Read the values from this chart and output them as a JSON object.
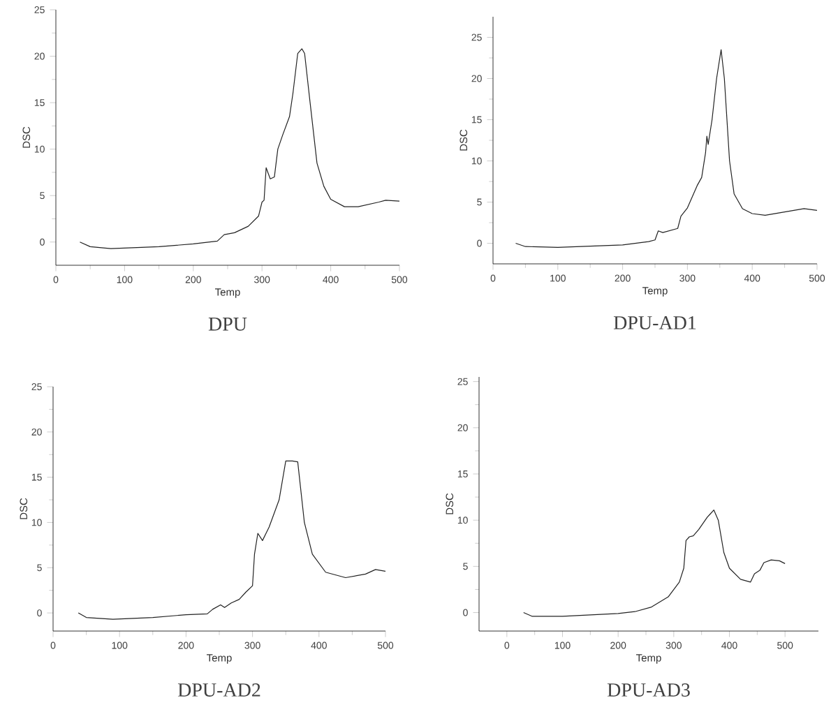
{
  "chart_data": [
    {
      "type": "line",
      "title": "DPU",
      "xlabel": "Temp",
      "ylabel": "DSC",
      "color": "#222222",
      "xlim": [
        0,
        500
      ],
      "ylim": [
        -2.5,
        25
      ],
      "xticks": [
        0,
        100,
        200,
        300,
        400,
        500
      ],
      "yticks": [
        0,
        5,
        10,
        15,
        20,
        25
      ],
      "x": [
        35,
        50,
        80,
        150,
        200,
        235,
        245,
        260,
        280,
        295,
        300,
        303,
        306,
        312,
        318,
        323,
        330,
        340,
        345,
        352,
        358,
        362,
        370,
        380,
        390,
        400,
        420,
        440,
        470,
        480,
        500
      ],
      "values": [
        0,
        -0.5,
        -0.7,
        -0.5,
        -0.2,
        0.1,
        0.8,
        1,
        1.7,
        2.8,
        4.3,
        4.5,
        8,
        6.8,
        7,
        10,
        11.5,
        13.5,
        16,
        20.3,
        20.8,
        20.3,
        15,
        8.5,
        6,
        4.6,
        3.8,
        3.8,
        4.3,
        4.5,
        4.4
      ]
    },
    {
      "type": "line",
      "title": "DPU-AD1",
      "xlabel": "Temp",
      "ylabel": "DSC",
      "color": "#222222",
      "xlim": [
        0,
        500
      ],
      "ylim": [
        -2.5,
        27.5
      ],
      "xticks": [
        0,
        100,
        200,
        300,
        400,
        500
      ],
      "yticks": [
        0,
        5,
        10,
        15,
        20,
        25
      ],
      "x": [
        35,
        50,
        100,
        200,
        240,
        250,
        255,
        262,
        285,
        290,
        300,
        315,
        322,
        328,
        330,
        332,
        338,
        345,
        352,
        357,
        365,
        372,
        385,
        400,
        420,
        450,
        480,
        500
      ],
      "values": [
        0,
        -0.4,
        -0.5,
        -0.2,
        0.2,
        0.4,
        1.5,
        1.3,
        1.8,
        3.3,
        4.3,
        7,
        8,
        11,
        13,
        12,
        15,
        20,
        23.5,
        20,
        10,
        6,
        4.2,
        3.6,
        3.4,
        3.8,
        4.2,
        4
      ]
    },
    {
      "type": "line",
      "title": "DPU-AD2",
      "xlabel": "Temp",
      "ylabel": "DSC",
      "color": "#222222",
      "xlim": [
        0,
        500
      ],
      "ylim": [
        -2,
        25
      ],
      "xticks": [
        0,
        100,
        200,
        300,
        400,
        500
      ],
      "yticks": [
        0,
        5,
        10,
        15,
        20,
        25
      ],
      "x": [
        38,
        50,
        90,
        150,
        200,
        232,
        240,
        252,
        258,
        268,
        280,
        290,
        300,
        303,
        308,
        315,
        325,
        340,
        350,
        360,
        368,
        378,
        390,
        410,
        440,
        470,
        485,
        500
      ],
      "values": [
        0,
        -0.5,
        -0.7,
        -0.5,
        -0.2,
        -0.1,
        0.4,
        0.9,
        0.6,
        1.1,
        1.5,
        2.3,
        3,
        6.5,
        8.8,
        8,
        9.5,
        12.5,
        16.8,
        16.8,
        16.7,
        10,
        6.5,
        4.5,
        3.9,
        4.3,
        4.8,
        4.6
      ]
    },
    {
      "type": "line",
      "title": "DPU-AD3",
      "xlabel": "Temp",
      "ylabel": "DSC",
      "color": "#222222",
      "xlim": [
        -50,
        560
      ],
      "ylim": [
        -2,
        25.5
      ],
      "xticks": [
        0,
        100,
        200,
        300,
        400,
        500
      ],
      "yticks": [
        0,
        5,
        10,
        15,
        20,
        25
      ],
      "x": [
        30,
        45,
        100,
        200,
        230,
        260,
        290,
        310,
        318,
        322,
        328,
        335,
        345,
        360,
        372,
        380,
        390,
        400,
        420,
        438,
        445,
        455,
        462,
        475,
        490,
        500
      ],
      "values": [
        0,
        -0.4,
        -0.4,
        -0.1,
        0.1,
        0.6,
        1.7,
        3.3,
        4.8,
        7.8,
        8.2,
        8.3,
        9,
        10.3,
        11.1,
        10,
        6.5,
        4.8,
        3.6,
        3.3,
        4.2,
        4.6,
        5.4,
        5.7,
        5.6,
        5.3
      ]
    }
  ]
}
